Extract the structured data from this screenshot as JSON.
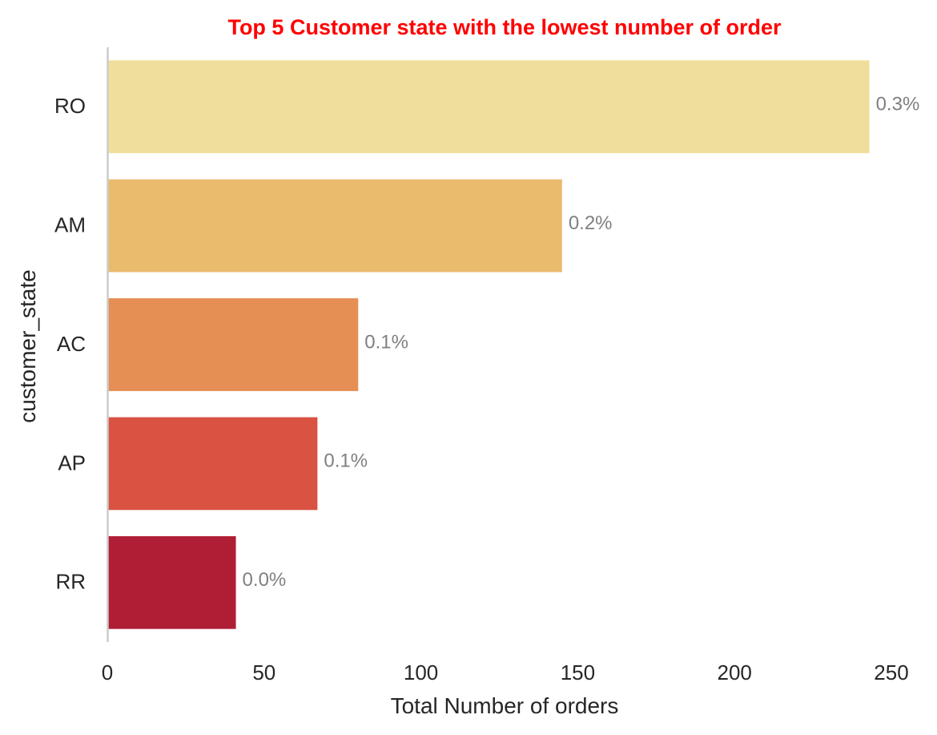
{
  "chart_data": {
    "type": "bar",
    "orientation": "horizontal",
    "title": "Top 5 Customer state with the lowest number of order",
    "xlabel": "Total Number of orders",
    "ylabel": "customer_state",
    "categories": [
      "RO",
      "AM",
      "AC",
      "AP",
      "RR"
    ],
    "values": [
      243,
      145,
      80,
      67,
      41
    ],
    "data_labels": [
      "0.3%",
      "0.2%",
      "0.1%",
      "0.1%",
      "0.0%"
    ],
    "xlim": [
      0,
      250
    ],
    "xticks": [
      0,
      50,
      100,
      150,
      200,
      250
    ],
    "xtick_labels": [
      "0",
      "50",
      "100",
      "150",
      "200",
      "250"
    ],
    "grid": false,
    "legend": "none",
    "colors": {
      "bars": [
        "#f0de9c",
        "#eabb6d",
        "#e58f54",
        "#d95242",
        "#b01e35"
      ],
      "title": "#ff0000",
      "data_label": "#808080",
      "axis_line": "#cccccc",
      "text": "#262626"
    }
  }
}
